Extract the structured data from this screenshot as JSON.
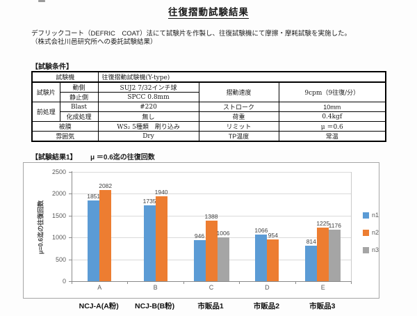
{
  "header": {
    "title": "往復摺動試験結果"
  },
  "intro": {
    "line1": "デフリックコート（DEFRIC　COAT）法にて試験片を作製し、往復試験機にて摩擦・摩耗試験を実施した。",
    "line2": "（株式会社川邑研究所への委託試験結果）"
  },
  "sections": {
    "conditions": "【試験条件】",
    "results": "【試験結果1】",
    "results_subtitle": "μ ＝0.6迄の往復回数"
  },
  "table": {
    "machine_label": "試験機",
    "machine_value": "往復摺動試験機(Y-type)",
    "specimen_label": "試験片",
    "moving_label": "動側",
    "moving_value": "SUJ2 7/32インチ球",
    "static_label": "静止側",
    "static_value": "SPCC 0.8mm",
    "sliding_speed_label": "摺動速度",
    "sliding_speed_value": "9cpm（9往復/分）",
    "pretreat_label": "前処理",
    "blast_label": "Blast",
    "blast_value": "#220",
    "chem_label": "化成処理",
    "chem_value": "無し",
    "stroke_label": "ストローク",
    "stroke_value": "10mm",
    "load_label": "荷重",
    "load_value": "0.4kgf",
    "coating_label": "被膜",
    "coating_value": "WS₂ 5種類　刷り込み",
    "limit_label": "リミット",
    "limit_value": "μ ＝0.6",
    "atmosphere_label": "雰囲気",
    "atmosphere_value": "Dry",
    "tp_label": "TP温度",
    "tp_value": "常温"
  },
  "chart_data": {
    "type": "bar",
    "title": "μ ＝0.6迄の往復回数",
    "xlabel": "",
    "ylabel": "μ=0.6迄の往復回数",
    "ylim": [
      0,
      2500
    ],
    "yticks": [
      0,
      500,
      1000,
      1500,
      2000,
      2500
    ],
    "grid": true,
    "legend_position": "right",
    "categories": [
      "A",
      "B",
      "C",
      "D",
      "E"
    ],
    "group_labels": [
      "NCJ-A(A粉)",
      "NCJ-B(B粉)",
      "市販品1",
      "市販品2",
      "市販品3"
    ],
    "series": [
      {
        "name": "n1",
        "color": "#5B9BD5",
        "values": [
          1851,
          1735,
          946,
          1066,
          814
        ]
      },
      {
        "name": "n2",
        "color": "#ED7D31",
        "values": [
          2082,
          1940,
          1388,
          954,
          1225
        ]
      },
      {
        "name": "n3",
        "color": "#A5A5A5",
        "values": [
          null,
          null,
          1006,
          null,
          1176
        ]
      }
    ]
  }
}
